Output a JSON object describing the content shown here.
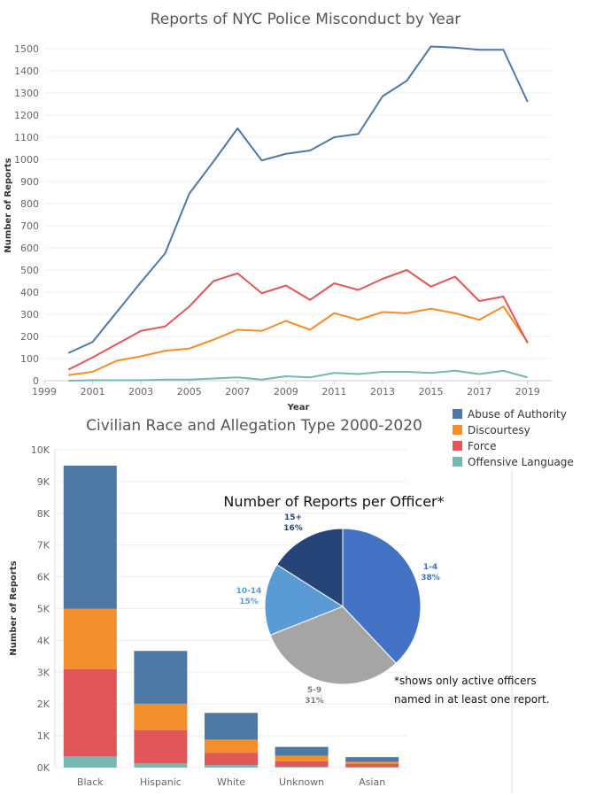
{
  "colors": {
    "abuse": "#4e79a7",
    "discourtesy": "#f28e2b",
    "force": "#e15759",
    "offensive": "#76b7b2",
    "pie_1_4": "#4472c4",
    "pie_5_9": "#a5a5a5",
    "pie_10_14": "#5b9bd5",
    "pie_15_plus": "#264478"
  },
  "chart_data": [
    {
      "type": "line",
      "title": "Reports of NYC Police Misconduct by Year",
      "xlabel": "Year",
      "ylabel": "Number of Reports",
      "x": [
        2000,
        2001,
        2002,
        2003,
        2004,
        2005,
        2006,
        2007,
        2008,
        2009,
        2010,
        2011,
        2012,
        2013,
        2014,
        2015,
        2016,
        2017,
        2018,
        2019
      ],
      "xticks": [
        "1999",
        "2001",
        "2003",
        "2005",
        "2007",
        "2009",
        "2011",
        "2013",
        "2015",
        "2017",
        "2019"
      ],
      "yticks": [
        "0",
        "100",
        "200",
        "300",
        "400",
        "500",
        "600",
        "700",
        "800",
        "900",
        "1000",
        "1100",
        "1200",
        "1300",
        "1400",
        "1500"
      ],
      "xlim": [
        1999,
        2020
      ],
      "ylim": [
        0,
        1560
      ],
      "grid": true,
      "series": [
        {
          "name": "Abuse of Authority",
          "color_key": "abuse",
          "values": [
            125,
            175,
            310,
            445,
            575,
            845,
            990,
            1140,
            995,
            1025,
            1040,
            1100,
            1115,
            1285,
            1355,
            1510,
            1505,
            1495,
            1495,
            1260
          ]
        },
        {
          "name": "Discourtesy",
          "color_key": "discourtesy",
          "values": [
            25,
            40,
            90,
            110,
            135,
            145,
            185,
            230,
            225,
            270,
            230,
            305,
            275,
            310,
            305,
            325,
            305,
            275,
            335,
            175
          ]
        },
        {
          "name": "Force",
          "color_key": "force",
          "values": [
            50,
            105,
            165,
            225,
            245,
            335,
            450,
            485,
            395,
            430,
            365,
            440,
            410,
            460,
            500,
            425,
            470,
            360,
            380,
            170
          ]
        },
        {
          "name": "Offensive Language",
          "color_key": "offensive",
          "values": [
            0,
            2,
            2,
            2,
            5,
            5,
            10,
            15,
            5,
            20,
            15,
            35,
            30,
            40,
            40,
            35,
            45,
            30,
            45,
            15
          ]
        }
      ]
    },
    {
      "type": "bar",
      "stacked": true,
      "title": "Civilian Race and Allegation Type 2000-2020",
      "ylabel": "Number of Reports",
      "categories": [
        "Black",
        "Hispanic",
        "White",
        "Unknown",
        "Asian"
      ],
      "yticks": [
        "0K",
        "1K",
        "2K",
        "3K",
        "4K",
        "5K",
        "6K",
        "7K",
        "8K",
        "9K",
        "10K"
      ],
      "ylim": [
        0,
        10000
      ],
      "series": [
        {
          "name": "Offensive Language",
          "color_key": "offensive",
          "values": [
            350,
            130,
            80,
            30,
            15
          ]
        },
        {
          "name": "Force",
          "color_key": "force",
          "values": [
            2750,
            1050,
            390,
            170,
            100
          ]
        },
        {
          "name": "Discourtesy",
          "color_key": "discourtesy",
          "values": [
            1900,
            830,
            410,
            170,
            70
          ]
        },
        {
          "name": "Abuse of Authority",
          "color_key": "abuse",
          "values": [
            4500,
            1660,
            840,
            280,
            145
          ]
        }
      ]
    },
    {
      "type": "pie",
      "title": "Number of Reports per Officer*",
      "slices": [
        {
          "label": "1-4",
          "pct_label": "38%",
          "value": 38,
          "color_key": "pie_1_4"
        },
        {
          "label": "5-9",
          "pct_label": "31%",
          "value": 31,
          "color_key": "pie_5_9"
        },
        {
          "label": "10-14",
          "pct_label": "15%",
          "value": 15,
          "color_key": "pie_10_14"
        },
        {
          "label": "15+",
          "pct_label": "16%",
          "value": 16,
          "color_key": "pie_15_plus"
        }
      ],
      "note_lines": [
        "*shows only active officers",
        "named in at least one report."
      ]
    }
  ],
  "legend": {
    "items": [
      {
        "label": "Abuse of Authority",
        "color_key": "abuse"
      },
      {
        "label": "Discourtesy",
        "color_key": "discourtesy"
      },
      {
        "label": "Force",
        "color_key": "force"
      },
      {
        "label": "Offensive Language",
        "color_key": "offensive"
      }
    ]
  }
}
